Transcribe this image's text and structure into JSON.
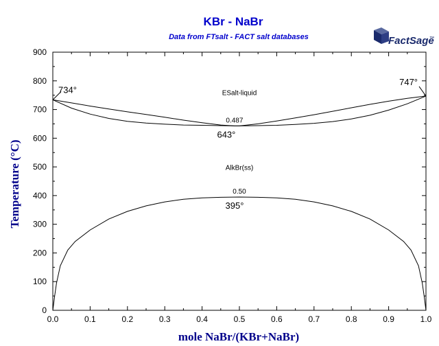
{
  "chart_data": {
    "type": "line",
    "title": "KBr - NaBr",
    "subtitle": "Data from FTsalt - FACT salt databases",
    "xlabel": "mole NaBr/(KBr+NaBr)",
    "ylabel": "Temperature (°C)",
    "xlim": [
      0,
      1
    ],
    "ylim": [
      0,
      900
    ],
    "xticks": [
      "0.0",
      "0.1",
      "0.2",
      "0.3",
      "0.4",
      "0.5",
      "0.6",
      "0.7",
      "0.8",
      "0.9",
      "1.0"
    ],
    "yticks": [
      "0",
      "100",
      "200",
      "300",
      "400",
      "500",
      "600",
      "700",
      "800",
      "900"
    ],
    "series": [
      {
        "x": [
          0.0,
          0.05,
          0.1,
          0.15,
          0.2,
          0.25,
          0.3,
          0.35,
          0.4,
          0.45,
          0.487,
          0.5,
          0.55,
          0.6,
          0.65,
          0.7,
          0.75,
          0.8,
          0.85,
          0.9,
          0.95,
          1.0
        ],
        "values": [
          734,
          723,
          712,
          702,
          692,
          683,
          673,
          663,
          654,
          646,
          643,
          643,
          650,
          660,
          671,
          682,
          694,
          706,
          718,
          729,
          739,
          747
        ]
      },
      {
        "x": [
          0.0,
          0.05,
          0.1,
          0.15,
          0.2,
          0.25,
          0.3,
          0.35,
          0.4,
          0.45,
          0.487,
          0.5,
          0.55,
          0.6,
          0.65,
          0.7,
          0.75,
          0.8,
          0.85,
          0.9,
          0.95,
          1.0
        ],
        "values": [
          734,
          705,
          684,
          669,
          659,
          653,
          649,
          646,
          645,
          644,
          643,
          643,
          644,
          645,
          648,
          652,
          658,
          667,
          680,
          698,
          720,
          747
        ]
      },
      {
        "x": [
          0.0,
          0.005,
          0.01,
          0.02,
          0.04,
          0.06,
          0.1,
          0.15,
          0.2,
          0.25,
          0.3,
          0.35,
          0.4,
          0.45,
          0.5,
          0.55,
          0.6,
          0.65,
          0.7,
          0.75,
          0.8,
          0.85,
          0.9,
          0.94,
          0.96,
          0.98,
          0.99,
          0.995,
          1.0
        ],
        "values": [
          0,
          50,
          95,
          155,
          210,
          240,
          280,
          318,
          345,
          364,
          378,
          387,
          392,
          394,
          395,
          394,
          392,
          387,
          378,
          364,
          345,
          318,
          280,
          240,
          210,
          155,
          95,
          50,
          0
        ]
      }
    ],
    "annotations": [
      {
        "text": "734°",
        "x": 0.0,
        "y": 734
      },
      {
        "text": "747°",
        "x": 1.0,
        "y": 747
      },
      {
        "text": "ESalt-liquid",
        "x": 0.5,
        "y": 760
      },
      {
        "text": "0.487",
        "x": 0.487,
        "y": 643
      },
      {
        "text": "643°",
        "x": 0.487,
        "y": 643
      },
      {
        "text": "AlkBr(ss)",
        "x": 0.5,
        "y": 490
      },
      {
        "text": "0.50",
        "x": 0.5,
        "y": 395
      },
      {
        "text": "395°",
        "x": 0.5,
        "y": 395
      }
    ],
    "grid": false,
    "line_color": "#000000"
  },
  "logo": {
    "text_main": "FactSage",
    "text_tm": "™"
  }
}
